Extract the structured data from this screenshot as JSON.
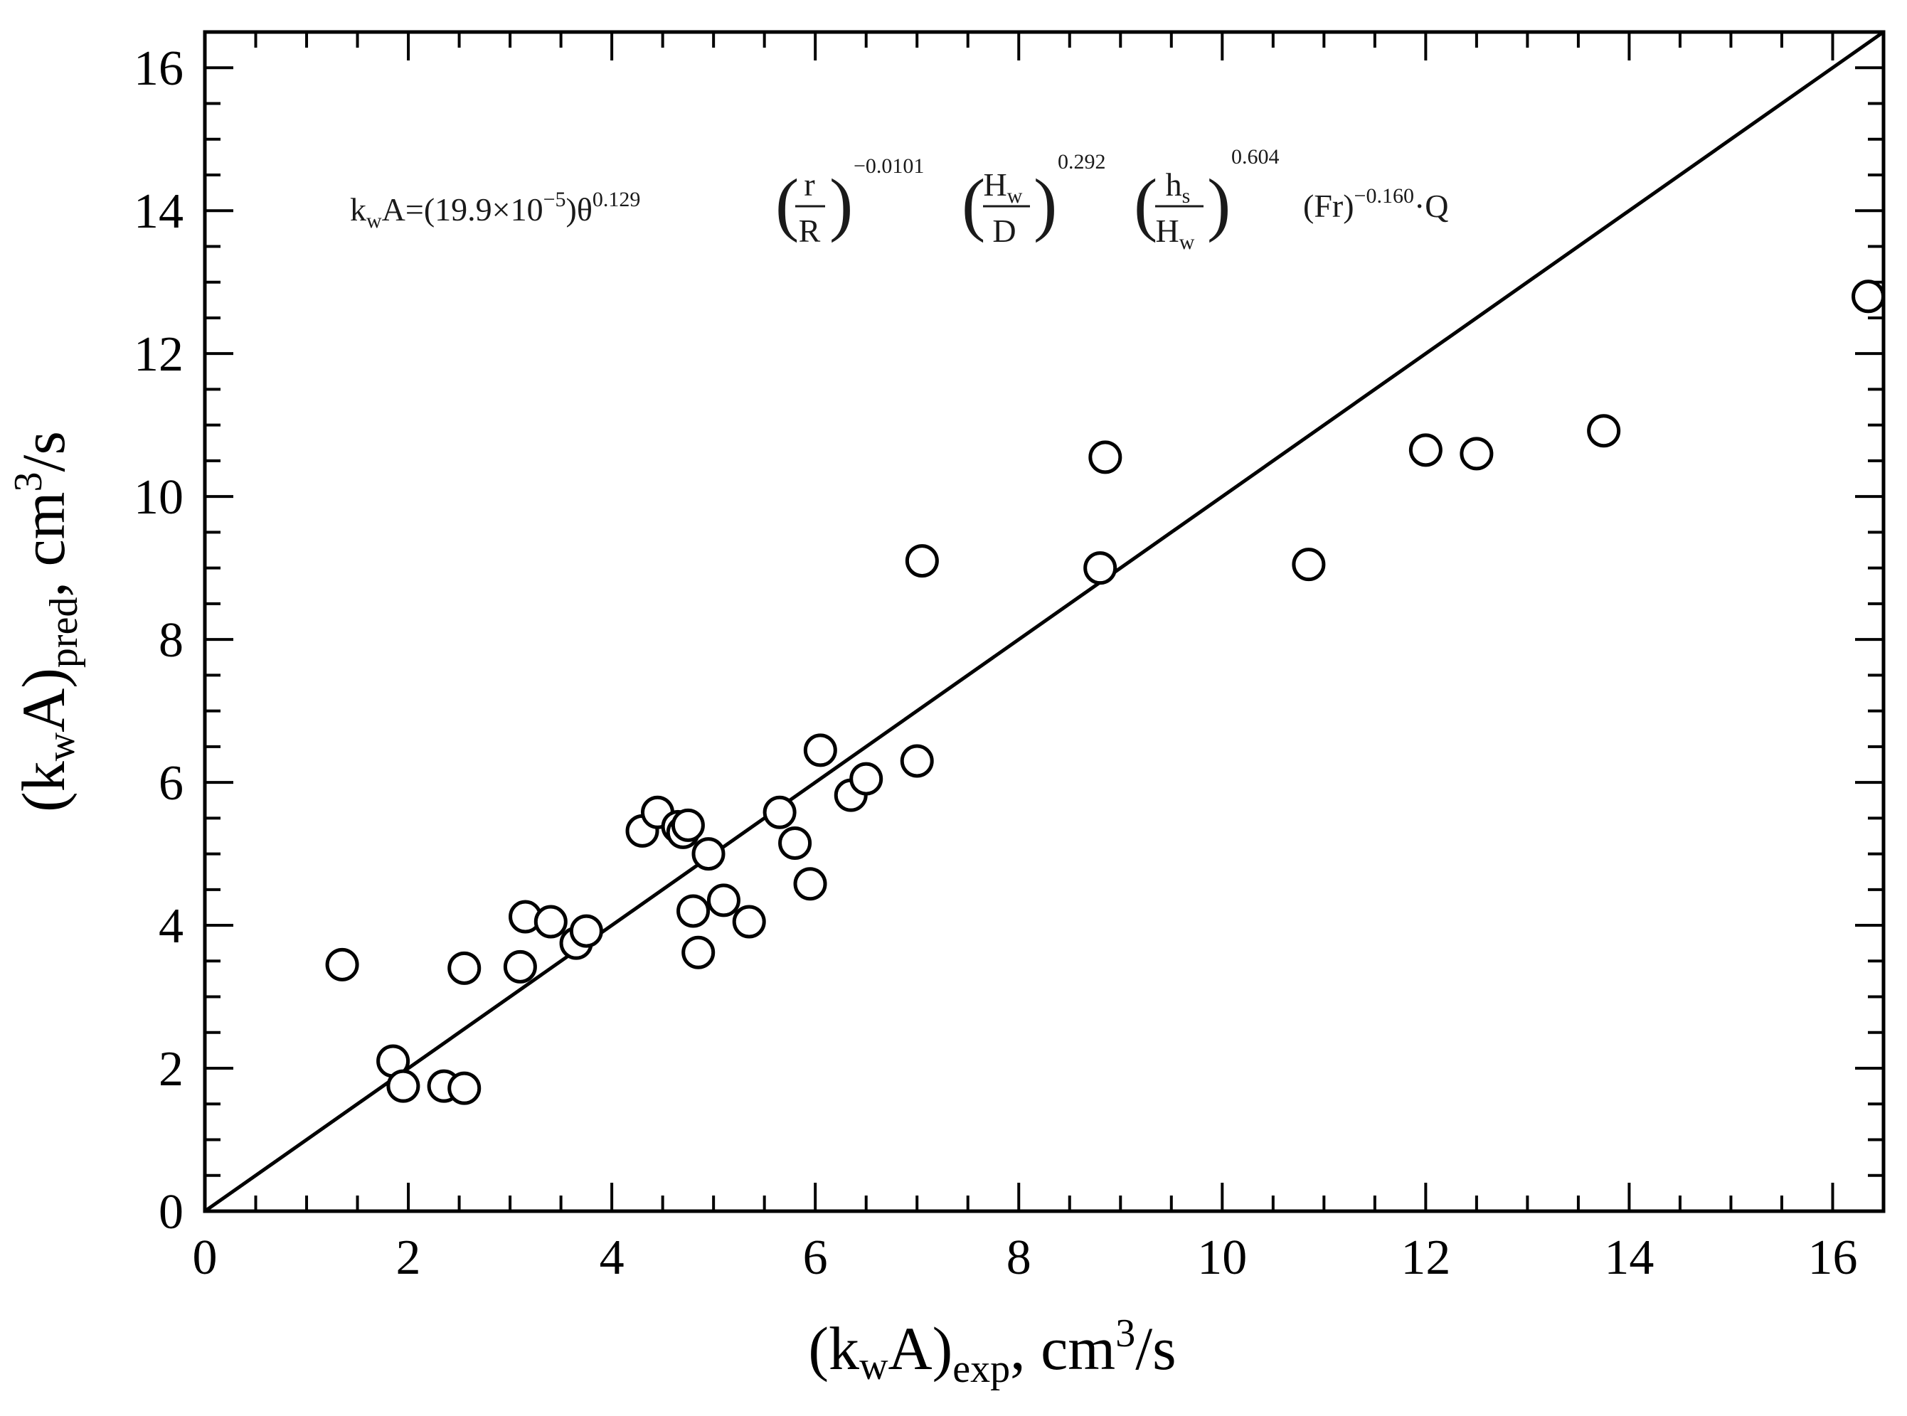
{
  "chart_data": {
    "type": "scatter",
    "title": "",
    "xlabel": {
      "base": "(k",
      "sub1": "w",
      "mid": "A)",
      "sub2": "exp",
      "tail": ", cm",
      "sup": "3",
      "end": "/s"
    },
    "ylabel": {
      "base": "(k",
      "sub1": "w",
      "mid": "A)",
      "sub2": "pred",
      "tail": ", cm",
      "sup": "3",
      "end": "/s"
    },
    "xlim": [
      0,
      16.5
    ],
    "ylim": [
      0,
      16.5
    ],
    "xticks": [
      "0",
      "2",
      "4",
      "6",
      "8",
      "10",
      "12",
      "14",
      "16"
    ],
    "yticks": [
      "0",
      "2",
      "4",
      "6",
      "8",
      "10",
      "12",
      "14",
      "16"
    ],
    "reference_line": {
      "type": "y=x",
      "from": [
        0,
        0
      ],
      "to": [
        16.5,
        16.5
      ]
    },
    "marker": "open-circle",
    "series": [
      {
        "name": "data",
        "points": [
          {
            "x": 1.35,
            "y": 3.45
          },
          {
            "x": 1.85,
            "y": 2.1
          },
          {
            "x": 1.95,
            "y": 1.75
          },
          {
            "x": 2.35,
            "y": 1.75
          },
          {
            "x": 2.55,
            "y": 1.72
          },
          {
            "x": 2.55,
            "y": 3.4
          },
          {
            "x": 3.1,
            "y": 3.42
          },
          {
            "x": 3.15,
            "y": 4.12
          },
          {
            "x": 3.4,
            "y": 4.05
          },
          {
            "x": 3.65,
            "y": 3.75
          },
          {
            "x": 3.75,
            "y": 3.92
          },
          {
            "x": 4.3,
            "y": 5.32
          },
          {
            "x": 4.45,
            "y": 5.58
          },
          {
            "x": 4.65,
            "y": 5.38
          },
          {
            "x": 4.7,
            "y": 5.3
          },
          {
            "x": 4.75,
            "y": 5.4
          },
          {
            "x": 4.8,
            "y": 4.2
          },
          {
            "x": 4.85,
            "y": 3.62
          },
          {
            "x": 4.95,
            "y": 5.0
          },
          {
            "x": 5.1,
            "y": 4.35
          },
          {
            "x": 5.35,
            "y": 4.05
          },
          {
            "x": 5.65,
            "y": 5.58
          },
          {
            "x": 5.8,
            "y": 5.15
          },
          {
            "x": 5.95,
            "y": 4.58
          },
          {
            "x": 6.05,
            "y": 6.45
          },
          {
            "x": 6.35,
            "y": 5.82
          },
          {
            "x": 6.5,
            "y": 6.05
          },
          {
            "x": 7.0,
            "y": 6.3
          },
          {
            "x": 7.05,
            "y": 9.1
          },
          {
            "x": 8.8,
            "y": 9.0
          },
          {
            "x": 8.85,
            "y": 10.55
          },
          {
            "x": 10.85,
            "y": 9.05
          },
          {
            "x": 12.0,
            "y": 10.65
          },
          {
            "x": 12.5,
            "y": 10.6
          },
          {
            "x": 13.75,
            "y": 10.92
          },
          {
            "x": 16.35,
            "y": 12.8
          }
        ]
      }
    ],
    "annotation": {
      "equation": {
        "lhs_k": "k",
        "lhs_w": "w",
        "lhs_A": "A=",
        "coef": "(19.9×10",
        "coef_exp": "−5",
        "coef_close": ")θ",
        "theta_exp": "0.129",
        "frac1_num": "r",
        "frac1_den": "R",
        "frac1_exp": "−0.0101",
        "frac2_num": "H",
        "frac2_num_sub": "w",
        "frac2_den": "D",
        "frac2_exp": "0.292",
        "frac3_num": "h",
        "frac3_num_sub": "s",
        "frac3_den": "H",
        "frac3_den_sub": "w",
        "frac3_exp": "0.604",
        "fr": "(Fr)",
        "fr_exp": "−0.160",
        "tail": "·Q"
      }
    }
  }
}
